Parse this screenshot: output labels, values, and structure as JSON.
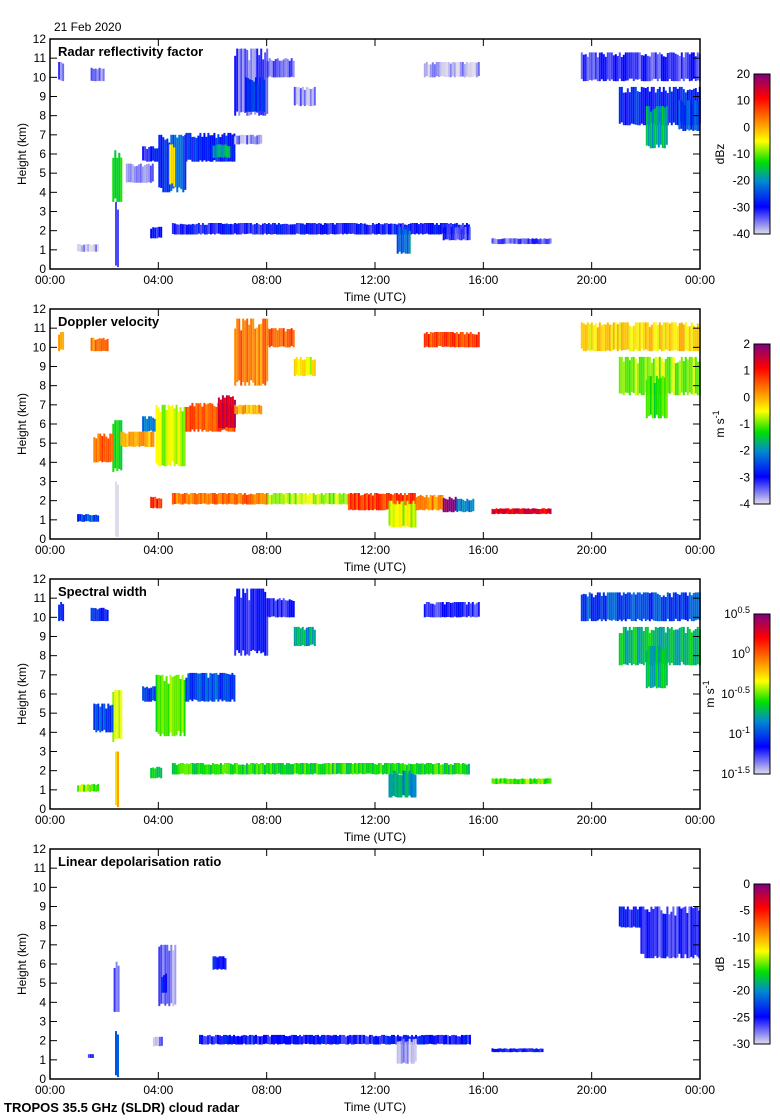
{
  "date_label": "21 Feb 2020",
  "footer": "TROPOS 35.5 GHz (SLDR) cloud radar",
  "chart_data": [
    {
      "type": "heatmap",
      "title": "Radar reflectivity factor",
      "xlabel": "Time (UTC)",
      "ylabel": "Height (km)",
      "x_ticks": [
        "00:00",
        "04:00",
        "08:00",
        "12:00",
        "16:00",
        "20:00",
        "00:00"
      ],
      "xlim_hours": [
        0,
        24
      ],
      "y_ticks": [
        0,
        1,
        2,
        3,
        4,
        5,
        6,
        7,
        8,
        9,
        10,
        11,
        12
      ],
      "ylim": [
        0,
        12
      ],
      "colorbar": {
        "label": "dBz",
        "range": [
          -40,
          20
        ],
        "ticks": [
          "20",
          "10",
          "0",
          "-10",
          "-20",
          "-30",
          "-40"
        ]
      },
      "regions": [
        {
          "t0": 0.3,
          "t1": 0.5,
          "h0": 9.8,
          "h1": 10.8,
          "v": -35
        },
        {
          "t0": 1.5,
          "t1": 2.0,
          "h0": 9.8,
          "h1": 10.5,
          "v": -35
        },
        {
          "t0": 2.3,
          "t1": 2.6,
          "h0": 3.5,
          "h1": 6.2,
          "v": -15
        },
        {
          "t0": 2.4,
          "t1": 2.5,
          "h0": 0.1,
          "h1": 3.5,
          "v": -32
        },
        {
          "t0": 1.0,
          "t1": 1.8,
          "h0": 0.9,
          "h1": 1.3,
          "v": -38
        },
        {
          "t0": 2.8,
          "t1": 3.8,
          "h0": 4.5,
          "h1": 5.5,
          "v": -36
        },
        {
          "t0": 3.4,
          "t1": 4.0,
          "h0": 5.6,
          "h1": 6.4,
          "v": -30
        },
        {
          "t0": 4.0,
          "t1": 5.0,
          "h0": 4.0,
          "h1": 7.0,
          "v": -25
        },
        {
          "t0": 4.4,
          "t1": 4.6,
          "h0": 4.3,
          "h1": 6.5,
          "v": -5
        },
        {
          "t0": 5.0,
          "t1": 6.8,
          "h0": 5.6,
          "h1": 7.1,
          "v": -28
        },
        {
          "t0": 6.0,
          "t1": 6.6,
          "h0": 5.8,
          "h1": 6.5,
          "v": -18
        },
        {
          "t0": 6.8,
          "t1": 7.8,
          "h0": 6.5,
          "h1": 7.0,
          "v": -36
        },
        {
          "t0": 6.8,
          "t1": 8.0,
          "h0": 8.0,
          "h1": 11.5,
          "v": -34
        },
        {
          "t0": 7.2,
          "t1": 7.9,
          "h0": 8.2,
          "h1": 10.0,
          "v": -28
        },
        {
          "t0": 8.0,
          "t1": 9.0,
          "h0": 10.0,
          "h1": 11.0,
          "v": -34
        },
        {
          "t0": 9.0,
          "t1": 9.8,
          "h0": 8.5,
          "h1": 9.5,
          "v": -36
        },
        {
          "t0": 3.7,
          "t1": 4.1,
          "h0": 1.6,
          "h1": 2.2,
          "v": -30
        },
        {
          "t0": 4.5,
          "t1": 15.5,
          "h0": 1.8,
          "h1": 2.4,
          "v": -30
        },
        {
          "t0": 12.8,
          "t1": 13.3,
          "h0": 0.8,
          "h1": 2.2,
          "v": -22
        },
        {
          "t0": 14.5,
          "t1": 15.5,
          "h0": 1.5,
          "h1": 2.2,
          "v": -32
        },
        {
          "t0": 16.3,
          "t1": 18.5,
          "h0": 1.3,
          "h1": 1.6,
          "v": -34
        },
        {
          "t0": 13.8,
          "t1": 15.8,
          "h0": 10.0,
          "h1": 10.8,
          "v": -38
        },
        {
          "t0": 19.6,
          "t1": 24.0,
          "h0": 9.8,
          "h1": 11.3,
          "v": -32
        },
        {
          "t0": 21.0,
          "t1": 24.0,
          "h0": 7.5,
          "h1": 9.5,
          "v": -28
        },
        {
          "t0": 22.0,
          "t1": 22.8,
          "h0": 6.3,
          "h1": 8.5,
          "v": -18
        },
        {
          "t0": 23.2,
          "t1": 24.0,
          "h0": 7.2,
          "h1": 8.8,
          "v": -25
        }
      ]
    },
    {
      "type": "heatmap",
      "title": "Doppler velocity",
      "xlabel": "Time (UTC)",
      "ylabel": "Height (km)",
      "x_ticks": [
        "00:00",
        "04:00",
        "08:00",
        "12:00",
        "16:00",
        "20:00",
        "00:00"
      ],
      "xlim_hours": [
        0,
        24
      ],
      "y_ticks": [
        0,
        1,
        2,
        3,
        4,
        5,
        6,
        7,
        8,
        9,
        10,
        11,
        12
      ],
      "ylim": [
        0,
        12
      ],
      "colorbar": {
        "label": "m s-1",
        "range": [
          -4,
          2
        ],
        "ticks": [
          "2",
          "1",
          "0",
          "-1",
          "-2",
          "-3",
          "-4"
        ]
      },
      "regions": [
        {
          "t0": 0.3,
          "t1": 0.5,
          "h0": 9.8,
          "h1": 10.8,
          "v": 0.0
        },
        {
          "t0": 1.5,
          "t1": 2.1,
          "h0": 9.8,
          "h1": 10.5,
          "v": 0.3
        },
        {
          "t0": 2.3,
          "t1": 2.6,
          "h0": 3.5,
          "h1": 6.2,
          "v": -1.5
        },
        {
          "t0": 2.4,
          "t1": 2.5,
          "h0": 0.1,
          "h1": 3.0,
          "v": -3.8
        },
        {
          "t0": 1.0,
          "t1": 1.8,
          "h0": 0.9,
          "h1": 1.3,
          "v": -2.5
        },
        {
          "t0": 1.6,
          "t1": 2.3,
          "h0": 4.0,
          "h1": 5.5,
          "v": 0.5
        },
        {
          "t0": 2.6,
          "t1": 3.8,
          "h0": 4.8,
          "h1": 5.6,
          "v": 0.0
        },
        {
          "t0": 3.4,
          "t1": 3.9,
          "h0": 5.6,
          "h1": 6.4,
          "v": -2.0
        },
        {
          "t0": 3.9,
          "t1": 5.0,
          "h0": 3.8,
          "h1": 7.0,
          "v": -0.8
        },
        {
          "t0": 5.0,
          "t1": 6.8,
          "h0": 5.6,
          "h1": 7.1,
          "v": 0.6
        },
        {
          "t0": 6.2,
          "t1": 6.8,
          "h0": 5.8,
          "h1": 7.5,
          "v": 1.4
        },
        {
          "t0": 6.8,
          "t1": 7.8,
          "h0": 6.5,
          "h1": 7.0,
          "v": 0.0
        },
        {
          "t0": 6.8,
          "t1": 8.0,
          "h0": 8.0,
          "h1": 11.5,
          "v": 0.3
        },
        {
          "t0": 8.0,
          "t1": 9.0,
          "h0": 10.0,
          "h1": 11.0,
          "v": 0.5
        },
        {
          "t0": 9.0,
          "t1": 9.8,
          "h0": 8.5,
          "h1": 9.5,
          "v": -0.5
        },
        {
          "t0": 3.7,
          "t1": 4.1,
          "h0": 1.6,
          "h1": 2.2,
          "v": 0.8
        },
        {
          "t0": 4.5,
          "t1": 8.0,
          "h0": 1.8,
          "h1": 2.4,
          "v": 0.4
        },
        {
          "t0": 8.0,
          "t1": 11.0,
          "h0": 1.8,
          "h1": 2.4,
          "v": -0.8
        },
        {
          "t0": 11.0,
          "t1": 13.5,
          "h0": 1.5,
          "h1": 2.4,
          "v": 0.7
        },
        {
          "t0": 12.5,
          "t1": 13.5,
          "h0": 0.6,
          "h1": 2.0,
          "v": -0.7
        },
        {
          "t0": 13.5,
          "t1": 14.5,
          "h0": 1.5,
          "h1": 2.3,
          "v": 0.3
        },
        {
          "t0": 14.5,
          "t1": 15.0,
          "h0": 1.4,
          "h1": 2.2,
          "v": 1.9
        },
        {
          "t0": 15.0,
          "t1": 15.6,
          "h0": 1.4,
          "h1": 2.1,
          "v": -2.2
        },
        {
          "t0": 16.3,
          "t1": 18.5,
          "h0": 1.3,
          "h1": 1.6,
          "v": 1.3
        },
        {
          "t0": 13.8,
          "t1": 15.8,
          "h0": 10.0,
          "h1": 10.8,
          "v": 0.7
        },
        {
          "t0": 19.6,
          "t1": 24.0,
          "h0": 9.8,
          "h1": 11.3,
          "v": -0.3
        },
        {
          "t0": 21.0,
          "t1": 24.0,
          "h0": 7.5,
          "h1": 9.5,
          "v": -0.8
        },
        {
          "t0": 22.0,
          "t1": 22.8,
          "h0": 6.3,
          "h1": 8.5,
          "v": -1.2
        }
      ]
    },
    {
      "type": "heatmap",
      "title": "Spectral width",
      "xlabel": "Time (UTC)",
      "ylabel": "Height (km)",
      "x_ticks": [
        "00:00",
        "04:00",
        "08:00",
        "12:00",
        "16:00",
        "20:00",
        "00:00"
      ],
      "xlim_hours": [
        0,
        24
      ],
      "y_ticks": [
        0,
        1,
        2,
        3,
        4,
        5,
        6,
        7,
        8,
        9,
        10,
        11,
        12
      ],
      "ylim": [
        0,
        12
      ],
      "colorbar": {
        "label": "m s-1",
        "scale": "log10",
        "range": [
          -1.5,
          0.5
        ],
        "ticks": [
          "10^0.5",
          "10^0",
          "10^-0.5",
          "10^-1",
          "10^-1.5"
        ]
      },
      "regions": [
        {
          "t0": 0.3,
          "t1": 0.5,
          "h0": 9.8,
          "h1": 10.8,
          "v": -1.1
        },
        {
          "t0": 1.5,
          "t1": 2.1,
          "h0": 9.8,
          "h1": 10.5,
          "v": -1.1
        },
        {
          "t0": 2.3,
          "t1": 2.6,
          "h0": 3.5,
          "h1": 6.2,
          "v": -0.4
        },
        {
          "t0": 2.4,
          "t1": 2.5,
          "h0": 0.1,
          "h1": 3.0,
          "v": -0.2
        },
        {
          "t0": 1.0,
          "t1": 1.8,
          "h0": 0.9,
          "h1": 1.3,
          "v": -0.5
        },
        {
          "t0": 1.6,
          "t1": 2.3,
          "h0": 4.0,
          "h1": 5.5,
          "v": -1.0
        },
        {
          "t0": 3.4,
          "t1": 3.9,
          "h0": 5.6,
          "h1": 6.4,
          "v": -1.0
        },
        {
          "t0": 3.9,
          "t1": 5.0,
          "h0": 3.8,
          "h1": 7.0,
          "v": -0.5
        },
        {
          "t0": 5.0,
          "t1": 6.8,
          "h0": 5.6,
          "h1": 7.1,
          "v": -1.0
        },
        {
          "t0": 6.8,
          "t1": 8.0,
          "h0": 8.0,
          "h1": 11.5,
          "v": -1.2
        },
        {
          "t0": 8.0,
          "t1": 9.0,
          "h0": 10.0,
          "h1": 11.0,
          "v": -1.2
        },
        {
          "t0": 9.0,
          "t1": 9.8,
          "h0": 8.5,
          "h1": 9.5,
          "v": -0.8
        },
        {
          "t0": 3.7,
          "t1": 4.1,
          "h0": 1.6,
          "h1": 2.2,
          "v": -0.7
        },
        {
          "t0": 4.5,
          "t1": 15.5,
          "h0": 1.8,
          "h1": 2.4,
          "v": -0.6
        },
        {
          "t0": 12.5,
          "t1": 13.5,
          "h0": 0.6,
          "h1": 2.0,
          "v": -0.8
        },
        {
          "t0": 16.3,
          "t1": 18.5,
          "h0": 1.3,
          "h1": 1.6,
          "v": -0.5
        },
        {
          "t0": 13.8,
          "t1": 15.8,
          "h0": 10.0,
          "h1": 10.8,
          "v": -1.2
        },
        {
          "t0": 19.6,
          "t1": 24.0,
          "h0": 9.8,
          "h1": 11.3,
          "v": -1.0
        },
        {
          "t0": 21.0,
          "t1": 24.0,
          "h0": 7.5,
          "h1": 9.5,
          "v": -0.7
        },
        {
          "t0": 22.0,
          "t1": 22.8,
          "h0": 6.3,
          "h1": 8.5,
          "v": -0.7
        }
      ]
    },
    {
      "type": "heatmap",
      "title": "Linear depolarisation ratio",
      "xlabel": "Time (UTC)",
      "ylabel": "Height (km)",
      "x_ticks": [
        "00:00",
        "04:00",
        "08:00",
        "12:00",
        "16:00",
        "20:00",
        "00:00"
      ],
      "xlim_hours": [
        0,
        24
      ],
      "y_ticks": [
        0,
        1,
        2,
        3,
        4,
        5,
        6,
        7,
        8,
        9,
        10,
        11,
        12
      ],
      "ylim": [
        0,
        12
      ],
      "colorbar": {
        "label": "dB",
        "range": [
          -30,
          0
        ],
        "ticks": [
          "0",
          "-5",
          "-10",
          "-15",
          "-20",
          "-25",
          "-30"
        ]
      },
      "regions": [
        {
          "t0": 2.35,
          "t1": 2.55,
          "h0": 3.5,
          "h1": 6.2,
          "v": -27
        },
        {
          "t0": 2.4,
          "t1": 2.5,
          "h0": 0.1,
          "h1": 2.5,
          "v": -22
        },
        {
          "t0": 1.4,
          "t1": 1.6,
          "h0": 1.1,
          "h1": 1.3,
          "v": -25
        },
        {
          "t0": 4.0,
          "t1": 4.6,
          "h0": 3.8,
          "h1": 7.0,
          "v": -28
        },
        {
          "t0": 4.1,
          "t1": 4.3,
          "h0": 4.5,
          "h1": 5.5,
          "v": -24
        },
        {
          "t0": 6.0,
          "t1": 6.5,
          "h0": 5.7,
          "h1": 6.4,
          "v": -24
        },
        {
          "t0": 3.8,
          "t1": 4.1,
          "h0": 1.7,
          "h1": 2.2,
          "v": -28
        },
        {
          "t0": 5.5,
          "t1": 15.5,
          "h0": 1.8,
          "h1": 2.3,
          "v": -25
        },
        {
          "t0": 12.8,
          "t1": 13.5,
          "h0": 0.8,
          "h1": 2.1,
          "v": -29
        },
        {
          "t0": 16.3,
          "t1": 18.2,
          "h0": 1.4,
          "h1": 1.6,
          "v": -25
        },
        {
          "t0": 21.0,
          "t1": 21.8,
          "h0": 7.9,
          "h1": 9.0,
          "v": -25
        },
        {
          "t0": 21.8,
          "t1": 24.0,
          "h0": 6.3,
          "h1": 9.0,
          "v": -26
        }
      ]
    }
  ]
}
